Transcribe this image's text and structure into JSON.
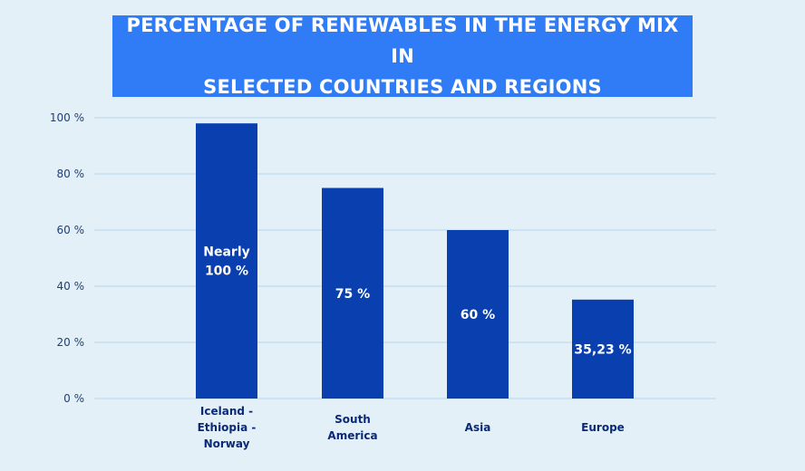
{
  "chart_data": {
    "type": "bar",
    "title_lines": [
      "PERCENTAGE OF RENEWABLES IN THE ENERGY MIX IN",
      "SELECTED COUNTRIES AND REGIONS"
    ],
    "categories": [
      [
        "Iceland -",
        "Ethiopia -",
        "Norway"
      ],
      [
        "South",
        "America"
      ],
      [
        "Asia"
      ],
      [
        "Europe"
      ]
    ],
    "values": [
      98,
      75,
      60,
      35.23
    ],
    "data_labels": [
      [
        "Nearly",
        "100 %"
      ],
      [
        "75 %"
      ],
      [
        "60 %"
      ],
      [
        "35,23 %"
      ]
    ],
    "y_ticks": [
      0,
      20,
      40,
      60,
      80,
      100
    ],
    "y_tick_labels": [
      "0 %",
      "20 %",
      "40 %",
      "60 %",
      "80 %",
      "100 %"
    ],
    "ylim": [
      0,
      100
    ],
    "grid": true,
    "xlabel": "",
    "ylabel": "",
    "colors": {
      "bar": "#0a3fb0",
      "title_bg": "#2f7cf6",
      "grid": "#b9d6ec",
      "background": "#e4f0f8"
    }
  }
}
